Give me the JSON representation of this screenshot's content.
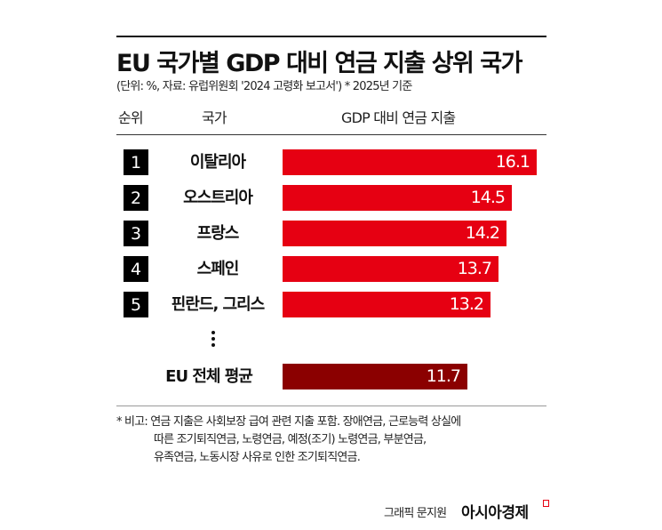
{
  "title": "EU 국가별 GDP 대비 연금 지출 상위 국가",
  "subtitle": "(단위: %, 자료: 유럽위원회 '2024 고령화 보고서')  * 2025년 기준",
  "headers": {
    "rank": "순위",
    "country": "국가",
    "value": "GDP 대비 연금 지출"
  },
  "colors": {
    "bar": "#e60012",
    "average_bar": "#8b0000",
    "brand_mark": "#e60012"
  },
  "chart_data": {
    "type": "bar",
    "orientation": "horizontal",
    "title": "EU 국가별 GDP 대비 연금 지출 상위 국가",
    "xlabel": "GDP 대비 연금 지출",
    "unit": "%",
    "categories": [
      "이탈리아",
      "오스트리아",
      "프랑스",
      "스페인",
      "핀란드, 그리스",
      "EU 전체 평균"
    ],
    "ranks": [
      "1",
      "2",
      "3",
      "4",
      "5",
      ""
    ],
    "values": [
      16.1,
      14.5,
      14.2,
      13.7,
      13.2,
      11.7
    ],
    "value_labels": [
      "16.1",
      "14.5",
      "14.2",
      "13.7",
      "13.2",
      "11.7"
    ],
    "xlim": [
      0,
      16.1
    ]
  },
  "ellipsis": "⋮",
  "notes": [
    "* 비고: 연금 지출은 사회보장 급여 관련 지출 포함. 장애연금, 근로능력 상실에",
    "따른 조기퇴직연금, 노령연금, 예정(조기) 노령연금, 부분연금,",
    "유족연금, 노동시장 사유로 인한 조기퇴직연금."
  ],
  "credit": "그래픽 문지원",
  "brand": "아시아경제"
}
